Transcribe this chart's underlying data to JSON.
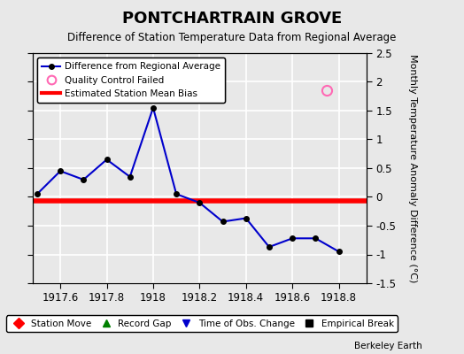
{
  "title": "PONTCHARTRAIN GROVE",
  "subtitle": "Difference of Station Temperature Data from Regional Average",
  "ylabel": "Monthly Temperature Anomaly Difference (°C)",
  "x": [
    1917.5,
    1917.6,
    1917.7,
    1917.8,
    1917.9,
    1918.0,
    1918.1,
    1918.2,
    1918.3,
    1918.4,
    1918.5,
    1918.6,
    1918.7,
    1918.8
  ],
  "y": [
    0.05,
    0.45,
    0.3,
    0.65,
    0.35,
    1.55,
    0.05,
    -0.1,
    -0.43,
    -0.37,
    -0.87,
    -0.72,
    -0.72,
    -0.95
  ],
  "bias": -0.07,
  "qc_failed_x": [
    1918.75
  ],
  "qc_failed_y": [
    1.85
  ],
  "xlim": [
    1917.48,
    1918.92
  ],
  "ylim": [
    -1.5,
    2.5
  ],
  "xticks": [
    1917.6,
    1917.8,
    1918.0,
    1918.2,
    1918.4,
    1918.6,
    1918.8
  ],
  "xtick_labels": [
    "1917.6",
    "1917.8",
    "1918",
    "1918.2",
    "1918.4",
    "1918.6",
    "1918.8"
  ],
  "yticks": [
    -1.5,
    -1.0,
    -0.5,
    0.0,
    0.5,
    1.0,
    1.5,
    2.0,
    2.5
  ],
  "ytick_labels_right": [
    "-1.5",
    "-1",
    "-0.5",
    "0",
    "0.5",
    "1",
    "1.5",
    "2",
    "2.5"
  ],
  "line_color": "#0000cc",
  "marker_color": "#000000",
  "bias_color": "#ff0000",
  "qc_color": "#ff69b4",
  "background_color": "#e8e8e8",
  "grid_color": "#ffffff",
  "watermark": "Berkeley Earth",
  "legend2_entries": [
    {
      "label": "Station Move",
      "color": "#ff0000",
      "marker": "D"
    },
    {
      "label": "Record Gap",
      "color": "#008000",
      "marker": "^"
    },
    {
      "label": "Time of Obs. Change",
      "color": "#0000cc",
      "marker": "v"
    },
    {
      "label": "Empirical Break",
      "color": "#000000",
      "marker": "s"
    }
  ]
}
